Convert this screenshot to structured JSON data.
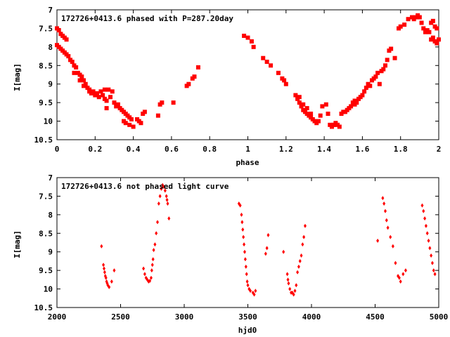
{
  "chart_data": [
    {
      "type": "scatter",
      "title": "172726+0413.6 phased with P=287.20day",
      "xlabel": "phase",
      "ylabel": "I[mag]",
      "xlim": [
        0,
        2
      ],
      "ylim": [
        10.5,
        7
      ],
      "y_inverted": true,
      "grid": false,
      "x_ticks": [
        "0",
        "0.2",
        "0.4",
        "0.6",
        "0.8",
        "1",
        "1.2",
        "1.4",
        "1.6",
        "1.8",
        "2"
      ],
      "y_ticks": [
        "7",
        "7.5",
        "8",
        "8.5",
        "9",
        "9.5",
        "10",
        "10.5"
      ],
      "marker": "filled-square",
      "color": "#ff0000",
      "series": [
        {
          "points": [
            [
              0.0,
              7.5
            ],
            [
              0.01,
              7.55
            ],
            [
              0.02,
              7.65
            ],
            [
              0.03,
              7.7
            ],
            [
              0.04,
              7.75
            ],
            [
              0.05,
              7.8
            ],
            [
              0.0,
              7.95
            ],
            [
              0.01,
              8.0
            ],
            [
              0.02,
              8.05
            ],
            [
              0.03,
              8.1
            ],
            [
              0.04,
              8.15
            ],
            [
              0.05,
              8.2
            ],
            [
              0.06,
              8.25
            ],
            [
              0.07,
              8.35
            ],
            [
              0.08,
              8.4
            ],
            [
              0.09,
              8.5
            ],
            [
              0.1,
              8.55
            ],
            [
              0.11,
              8.7
            ],
            [
              0.12,
              8.75
            ],
            [
              0.13,
              8.8
            ],
            [
              0.14,
              8.9
            ],
            [
              0.15,
              9.0
            ],
            [
              0.16,
              9.1
            ],
            [
              0.17,
              9.15
            ],
            [
              0.18,
              9.25
            ],
            [
              0.19,
              9.2
            ],
            [
              0.2,
              9.3
            ],
            [
              0.21,
              9.25
            ],
            [
              0.22,
              9.35
            ],
            [
              0.23,
              9.2
            ],
            [
              0.24,
              9.3
            ],
            [
              0.25,
              9.4
            ],
            [
              0.26,
              9.45
            ],
            [
              0.27,
              9.15
            ],
            [
              0.28,
              9.35
            ],
            [
              0.29,
              9.2
            ],
            [
              0.3,
              9.5
            ],
            [
              0.31,
              9.6
            ],
            [
              0.32,
              9.55
            ],
            [
              0.33,
              9.65
            ],
            [
              0.34,
              9.7
            ],
            [
              0.35,
              9.75
            ],
            [
              0.36,
              9.8
            ],
            [
              0.37,
              9.85
            ],
            [
              0.38,
              9.9
            ],
            [
              0.35,
              10.0
            ],
            [
              0.36,
              10.05
            ],
            [
              0.38,
              10.1
            ],
            [
              0.4,
              10.15
            ],
            [
              0.42,
              9.95
            ],
            [
              0.43,
              10.0
            ],
            [
              0.44,
              10.05
            ],
            [
              0.45,
              9.8
            ],
            [
              0.46,
              9.75
            ],
            [
              0.54,
              9.55
            ],
            [
              0.55,
              9.5
            ],
            [
              0.53,
              9.85
            ],
            [
              0.61,
              9.5
            ],
            [
              0.68,
              9.05
            ],
            [
              0.69,
              9.0
            ],
            [
              0.71,
              8.85
            ],
            [
              0.72,
              8.8
            ],
            [
              0.74,
              8.55
            ],
            [
              0.09,
              8.7
            ],
            [
              0.12,
              8.9
            ],
            [
              0.14,
              9.05
            ],
            [
              0.17,
              9.2
            ],
            [
              0.25,
              9.15
            ],
            [
              0.26,
              9.65
            ],
            [
              0.39,
              9.95
            ],
            [
              0.98,
              7.7
            ],
            [
              1.0,
              7.75
            ],
            [
              1.02,
              7.85
            ],
            [
              1.03,
              8.0
            ],
            [
              1.08,
              8.3
            ],
            [
              1.1,
              8.4
            ],
            [
              1.12,
              8.5
            ],
            [
              1.16,
              8.7
            ],
            [
              1.18,
              8.85
            ],
            [
              1.19,
              8.9
            ],
            [
              1.2,
              9.0
            ],
            [
              1.25,
              9.3
            ],
            [
              1.26,
              9.4
            ],
            [
              1.27,
              9.5
            ],
            [
              1.28,
              9.6
            ],
            [
              1.29,
              9.7
            ],
            [
              1.3,
              9.75
            ],
            [
              1.31,
              9.8
            ],
            [
              1.32,
              9.85
            ],
            [
              1.33,
              9.9
            ],
            [
              1.34,
              9.95
            ],
            [
              1.35,
              10.0
            ],
            [
              1.36,
              10.05
            ],
            [
              1.37,
              10.0
            ],
            [
              1.38,
              9.85
            ],
            [
              1.39,
              9.6
            ],
            [
              1.41,
              9.55
            ],
            [
              1.42,
              9.8
            ],
            [
              1.43,
              10.1
            ],
            [
              1.44,
              10.15
            ],
            [
              1.45,
              10.1
            ],
            [
              1.46,
              10.05
            ],
            [
              1.47,
              10.1
            ],
            [
              1.48,
              10.15
            ],
            [
              1.49,
              9.8
            ],
            [
              1.5,
              9.75
            ],
            [
              1.52,
              9.7
            ],
            [
              1.53,
              9.65
            ],
            [
              1.54,
              9.6
            ],
            [
              1.55,
              9.5
            ],
            [
              1.56,
              9.45
            ],
            [
              1.57,
              9.5
            ],
            [
              1.58,
              9.4
            ],
            [
              1.59,
              9.35
            ],
            [
              1.6,
              9.3
            ],
            [
              1.61,
              9.2
            ],
            [
              1.62,
              9.1
            ],
            [
              1.63,
              9.0
            ],
            [
              1.64,
              9.05
            ],
            [
              1.65,
              8.9
            ],
            [
              1.66,
              8.85
            ],
            [
              1.67,
              8.8
            ],
            [
              1.68,
              8.7
            ],
            [
              1.69,
              9.0
            ],
            [
              1.7,
              8.65
            ],
            [
              1.71,
              8.6
            ],
            [
              1.72,
              8.5
            ],
            [
              1.73,
              8.35
            ],
            [
              1.74,
              8.1
            ],
            [
              1.75,
              8.05
            ],
            [
              1.77,
              8.3
            ],
            [
              1.79,
              7.5
            ],
            [
              1.8,
              7.45
            ],
            [
              1.82,
              7.4
            ],
            [
              1.84,
              7.25
            ],
            [
              1.86,
              7.2
            ],
            [
              1.87,
              7.25
            ],
            [
              1.88,
              7.2
            ],
            [
              1.89,
              7.15
            ],
            [
              1.9,
              7.2
            ],
            [
              1.91,
              7.35
            ],
            [
              1.92,
              7.5
            ],
            [
              1.93,
              7.6
            ],
            [
              1.94,
              7.55
            ],
            [
              1.95,
              7.6
            ],
            [
              1.96,
              7.8
            ],
            [
              1.97,
              7.75
            ],
            [
              1.98,
              7.85
            ],
            [
              1.99,
              7.9
            ],
            [
              2.0,
              7.8
            ],
            [
              1.99,
              7.5
            ],
            [
              1.98,
              7.45
            ],
            [
              1.97,
              7.3
            ],
            [
              1.96,
              7.35
            ],
            [
              1.27,
              9.35
            ],
            [
              1.29,
              9.55
            ],
            [
              1.31,
              9.65
            ],
            [
              1.33,
              9.8
            ],
            [
              1.45,
              10.1
            ],
            [
              1.51,
              9.75
            ],
            [
              1.56,
              9.55
            ]
          ]
        }
      ]
    },
    {
      "type": "scatter",
      "title": "172726+0413.6 not phased light curve",
      "xlabel": "hjd0",
      "ylabel": "I[mag]",
      "xlim": [
        2000,
        5000
      ],
      "ylim": [
        10.5,
        7
      ],
      "y_inverted": true,
      "grid": false,
      "x_ticks": [
        "2000",
        "2500",
        "3000",
        "3500",
        "4000",
        "4500",
        "5000"
      ],
      "y_ticks": [
        "7",
        "7.5",
        "8",
        "8.5",
        "9",
        "9.5",
        "10",
        "10.5"
      ],
      "marker": "filled-diamond",
      "color": "#ff0000",
      "series": [
        {
          "points": [
            [
              2350,
              8.85
            ],
            [
              2365,
              9.35
            ],
            [
              2370,
              9.45
            ],
            [
              2375,
              9.55
            ],
            [
              2380,
              9.65
            ],
            [
              2385,
              9.7
            ],
            [
              2390,
              9.8
            ],
            [
              2395,
              9.85
            ],
            [
              2400,
              9.9
            ],
            [
              2410,
              9.95
            ],
            [
              2430,
              9.8
            ],
            [
              2450,
              9.5
            ],
            [
              2680,
              9.45
            ],
            [
              2690,
              9.6
            ],
            [
              2700,
              9.7
            ],
            [
              2710,
              9.75
            ],
            [
              2720,
              9.8
            ],
            [
              2730,
              9.78
            ],
            [
              2740,
              9.7
            ],
            [
              2745,
              9.5
            ],
            [
              2750,
              9.35
            ],
            [
              2755,
              9.2
            ],
            [
              2760,
              8.95
            ],
            [
              2770,
              8.8
            ],
            [
              2780,
              8.5
            ],
            [
              2790,
              8.2
            ],
            [
              2800,
              7.7
            ],
            [
              2810,
              7.5
            ],
            [
              2820,
              7.3
            ],
            [
              2830,
              7.2
            ],
            [
              2840,
              7.25
            ],
            [
              2850,
              7.35
            ],
            [
              2860,
              7.5
            ],
            [
              2865,
              7.6
            ],
            [
              2870,
              7.7
            ],
            [
              2880,
              8.1
            ],
            [
              3430,
              7.7
            ],
            [
              3440,
              7.75
            ],
            [
              3450,
              8.0
            ],
            [
              3455,
              8.2
            ],
            [
              3460,
              8.4
            ],
            [
              3465,
              8.6
            ],
            [
              3470,
              8.8
            ],
            [
              3475,
              9.0
            ],
            [
              3480,
              9.2
            ],
            [
              3485,
              9.4
            ],
            [
              3490,
              9.6
            ],
            [
              3495,
              9.8
            ],
            [
              3500,
              9.9
            ],
            [
              3510,
              10.0
            ],
            [
              3520,
              10.05
            ],
            [
              3540,
              10.1
            ],
            [
              3550,
              10.15
            ],
            [
              3560,
              10.05
            ],
            [
              3640,
              9.05
            ],
            [
              3650,
              8.9
            ],
            [
              3660,
              8.55
            ],
            [
              3780,
              9.0
            ],
            [
              3810,
              9.6
            ],
            [
              3815,
              9.75
            ],
            [
              3820,
              9.85
            ],
            [
              3830,
              10.0
            ],
            [
              3840,
              10.1
            ],
            [
              3850,
              10.1
            ],
            [
              3860,
              10.15
            ],
            [
              3870,
              10.05
            ],
            [
              3880,
              9.9
            ],
            [
              3890,
              9.55
            ],
            [
              3900,
              9.4
            ],
            [
              3910,
              9.25
            ],
            [
              3920,
              9.1
            ],
            [
              3930,
              8.8
            ],
            [
              3940,
              8.6
            ],
            [
              3950,
              8.3
            ],
            [
              4520,
              8.7
            ],
            [
              4560,
              7.55
            ],
            [
              4570,
              7.7
            ],
            [
              4580,
              7.9
            ],
            [
              4590,
              8.15
            ],
            [
              4600,
              8.35
            ],
            [
              4620,
              8.6
            ],
            [
              4640,
              8.85
            ],
            [
              4660,
              9.3
            ],
            [
              4680,
              9.65
            ],
            [
              4690,
              9.7
            ],
            [
              4700,
              9.8
            ],
            [
              4720,
              9.6
            ],
            [
              4740,
              9.5
            ],
            [
              4870,
              7.75
            ],
            [
              4880,
              7.9
            ],
            [
              4890,
              8.1
            ],
            [
              4900,
              8.3
            ],
            [
              4910,
              8.5
            ],
            [
              4920,
              8.7
            ],
            [
              4930,
              8.9
            ],
            [
              4940,
              9.1
            ],
            [
              4950,
              9.3
            ],
            [
              4960,
              9.5
            ],
            [
              4970,
              9.6
            ]
          ]
        }
      ]
    }
  ]
}
